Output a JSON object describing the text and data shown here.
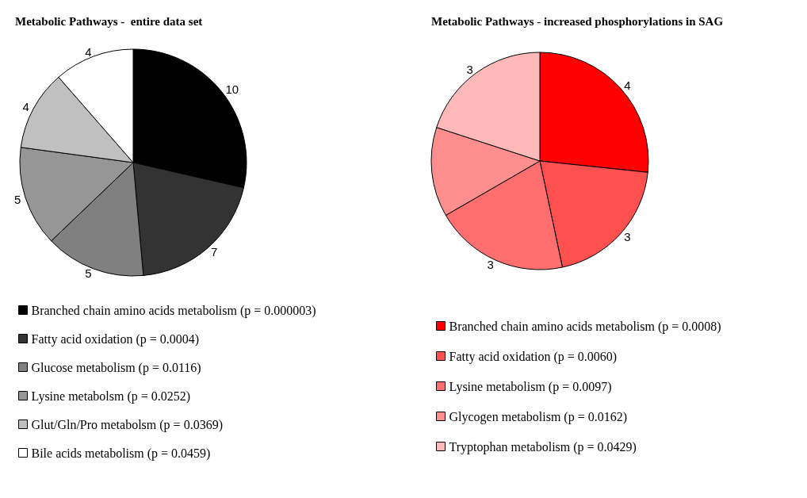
{
  "chart_data": [
    {
      "type": "pie",
      "title": "Metabolic Pathways -  entire data set",
      "categories": [
        "Branched chain amino acids metabolism (p = 0.000003)",
        "Fatty acid oxidation (p = 0.0004)",
        "Glucose metabolism (p = 0.0116)",
        "Lysine metabolsm (p = 0.0252)",
        "Glut/Gln/Pro metabolsm (p = 0.0369)",
        "Bile acids metabolism (p = 0.0459)"
      ],
      "values": [
        10,
        7,
        5,
        5,
        4,
        4
      ],
      "colors": [
        "#000000",
        "#333333",
        "#808080",
        "#969696",
        "#c0c0c0",
        "#ffffff"
      ],
      "data_labels": true,
      "legend": "bottom"
    },
    {
      "type": "pie",
      "title": "Metabolic Pathways - increased phosphorylations in SAG",
      "categories": [
        "Branched chain amino acids metabolism (p = 0.0008)",
        "Fatty acid oxidation (p = 0.0060)",
        "Lysine metabolism (p = 0.0097)",
        "Glycogen metabolism (p = 0.0162)",
        "Tryptophan metabolism (p = 0.0429)"
      ],
      "values": [
        4,
        3,
        3,
        2,
        3
      ],
      "colors": [
        "#ff0000",
        "#ff5050",
        "#ff6f6f",
        "#ff8f8f",
        "#ffb9b9"
      ],
      "value_labels": [
        "4",
        "3",
        "3",
        null,
        "3"
      ],
      "legend": "bottom"
    }
  ]
}
